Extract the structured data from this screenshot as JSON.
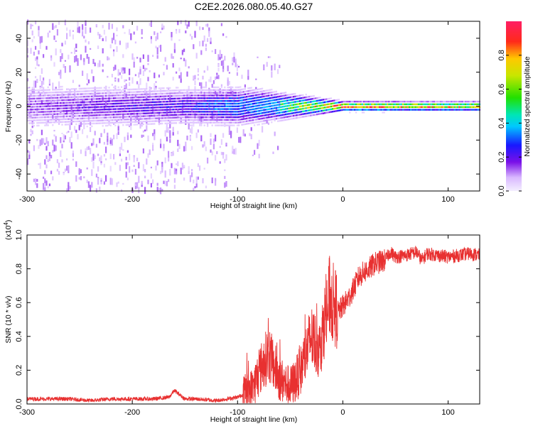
{
  "chart_data": [
    {
      "type": "heatmap",
      "title": "C2E2.2026.080.05.40.G27",
      "xlabel": "Height of straight line (km)",
      "ylabel": "Frequency (Hz)",
      "xlim": [
        -300,
        130
      ],
      "ylim": [
        -50,
        50
      ],
      "xticks": [
        -300,
        -200,
        -100,
        0,
        100
      ],
      "yticks": [
        -40,
        -20,
        0,
        20,
        40
      ],
      "colorbar": {
        "label": "Normalized spectral amplitude",
        "range": [
          0,
          1
        ],
        "ticks": [
          "0.0",
          "0.2",
          "0.4",
          "0.6",
          "0.8"
        ]
      },
      "description_points": [
        {
          "height_km": -300,
          "band_halfwidth_hz": 10,
          "peak_amplitude": 0.15
        },
        {
          "height_km": -150,
          "band_halfwidth_hz": 8,
          "peak_amplitude": 0.25
        },
        {
          "height_km": -100,
          "band_halfwidth_hz": 8,
          "peak_amplitude": 0.4
        },
        {
          "height_km": -50,
          "band_halfwidth_hz": 5,
          "peak_amplitude": 0.6
        },
        {
          "height_km": 0,
          "band_halfwidth_hz": 2,
          "peak_amplitude": 0.95
        },
        {
          "height_km": 130,
          "band_halfwidth_hz": 2,
          "peak_amplitude": 0.8
        }
      ]
    },
    {
      "type": "line",
      "xlabel": "Height of straight line (km)",
      "ylabel": "SNR (10 * v/v)",
      "yscale_label": "(x10",
      "yscale_exp": "4",
      "xlim": [
        -300,
        130
      ],
      "ylim": [
        0,
        1
      ],
      "xticks": [
        -300,
        -200,
        -100,
        0,
        100
      ],
      "yticks": [
        0.0,
        0.2,
        0.4,
        0.6,
        0.8,
        1.0
      ],
      "color": "#e83030",
      "series": [
        {
          "name": "SNR",
          "x": [
            -300,
            -280,
            -260,
            -240,
            -220,
            -200,
            -180,
            -165,
            -160,
            -150,
            -140,
            -120,
            -110,
            -100,
            -90,
            -85,
            -80,
            -75,
            -72,
            -70,
            -68,
            -65,
            -60,
            -55,
            -50,
            -45,
            -40,
            -35,
            -32,
            -30,
            -28,
            -25,
            -22,
            -20,
            -18,
            -15,
            -12,
            -10,
            -8,
            -5,
            -2,
            0,
            5,
            10,
            15,
            20,
            25,
            30,
            40,
            45,
            50,
            60,
            70,
            75,
            80,
            90,
            100,
            110,
            120,
            130
          ],
          "values": [
            0.03,
            0.03,
            0.03,
            0.02,
            0.03,
            0.03,
            0.03,
            0.04,
            0.08,
            0.03,
            0.03,
            0.02,
            0.03,
            0.04,
            0.07,
            0.1,
            0.18,
            0.25,
            0.28,
            0.3,
            0.26,
            0.22,
            0.15,
            0.12,
            0.1,
            0.14,
            0.2,
            0.3,
            0.36,
            0.4,
            0.37,
            0.35,
            0.32,
            0.4,
            0.48,
            0.55,
            0.65,
            0.6,
            0.58,
            0.55,
            0.56,
            0.58,
            0.62,
            0.68,
            0.75,
            0.78,
            0.8,
            0.83,
            0.85,
            0.9,
            0.87,
            0.88,
            0.9,
            0.85,
            0.89,
            0.88,
            0.87,
            0.88,
            0.89,
            0.88
          ]
        }
      ]
    }
  ]
}
